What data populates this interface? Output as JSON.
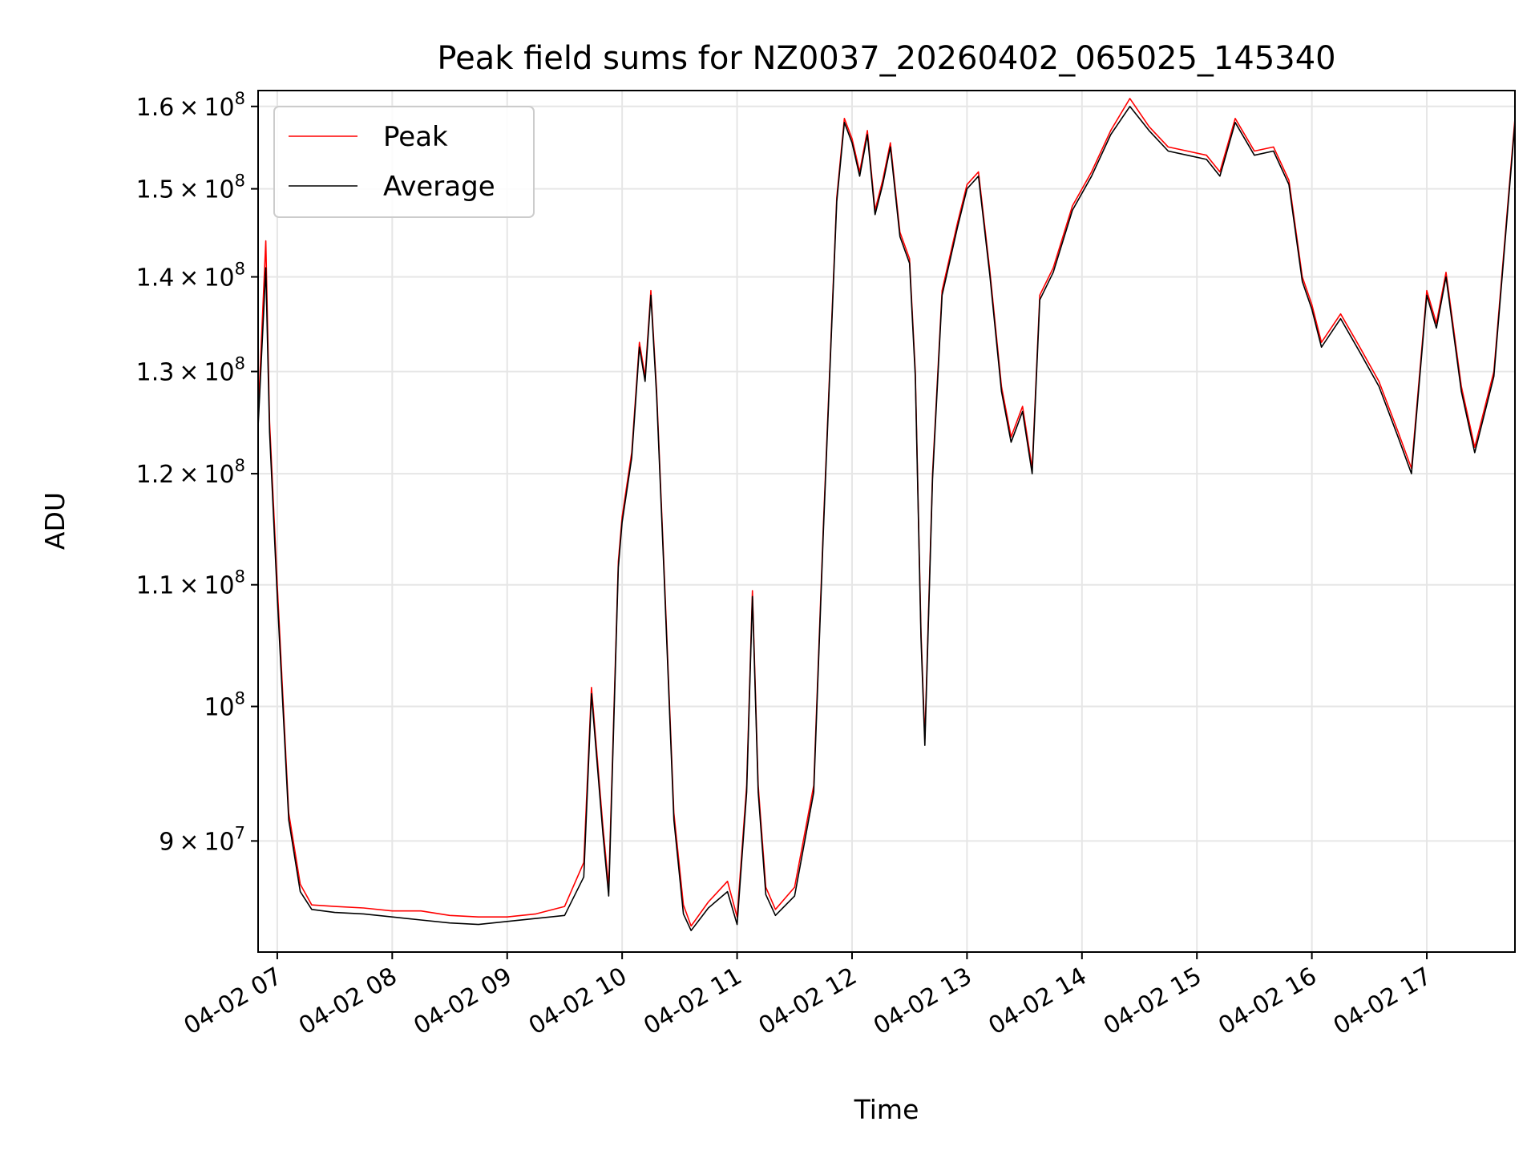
{
  "chart_data": {
    "type": "line",
    "title": "Peak field sums for NZ0037_20260402_065025_145340",
    "xlabel": "Time",
    "ylabel": "ADU",
    "yscale": "log",
    "grid": true,
    "legend_position": "top-left",
    "xlim": [
      "2026-04-02 06:50",
      "2026-04-02 17:46"
    ],
    "ylim": [
      82500000,
      162000000
    ],
    "x_tick_values": [
      "2026-04-02 07:00",
      "2026-04-02 08:00",
      "2026-04-02 09:00",
      "2026-04-02 10:00",
      "2026-04-02 11:00",
      "2026-04-02 12:00",
      "2026-04-02 13:00",
      "2026-04-02 14:00",
      "2026-04-02 15:00",
      "2026-04-02 16:00",
      "2026-04-02 17:00"
    ],
    "x_tick_labels": [
      "04-02 07",
      "04-02 08",
      "04-02 09",
      "04-02 10",
      "04-02 11",
      "04-02 12",
      "04-02 13",
      "04-02 14",
      "04-02 15",
      "04-02 16",
      "04-02 17"
    ],
    "y_ticks": [
      {
        "value": 90000000,
        "mantissa": "9",
        "exp": "7"
      },
      {
        "value": 100000000,
        "mantissa": "",
        "exp": "8"
      },
      {
        "value": 110000000,
        "mantissa": "1.1",
        "exp": "8"
      },
      {
        "value": 120000000,
        "mantissa": "1.2",
        "exp": "8"
      },
      {
        "value": 130000000,
        "mantissa": "1.3",
        "exp": "8"
      },
      {
        "value": 140000000,
        "mantissa": "1.4",
        "exp": "8"
      },
      {
        "value": 150000000,
        "mantissa": "1.5",
        "exp": "8"
      },
      {
        "value": 160000000,
        "mantissa": "1.6",
        "exp": "8"
      }
    ],
    "colors": {
      "Peak": "#ff0000",
      "Average": "#000000",
      "grid": "#e6e6e6"
    },
    "series": [
      {
        "name": "Peak",
        "color": "#ff0000",
        "x": [
          "2026-04-02 06:50",
          "2026-04-02 06:54",
          "2026-04-02 06:56",
          "2026-04-02 07:00",
          "2026-04-02 07:06",
          "2026-04-02 07:12",
          "2026-04-02 07:18",
          "2026-04-02 07:30",
          "2026-04-02 07:45",
          "2026-04-02 08:00",
          "2026-04-02 08:15",
          "2026-04-02 08:30",
          "2026-04-02 08:45",
          "2026-04-02 09:00",
          "2026-04-02 09:15",
          "2026-04-02 09:30",
          "2026-04-02 09:40",
          "2026-04-02 09:44",
          "2026-04-02 09:50",
          "2026-04-02 09:53",
          "2026-04-02 09:58",
          "2026-04-02 10:00",
          "2026-04-02 10:05",
          "2026-04-02 10:09",
          "2026-04-02 10:12",
          "2026-04-02 10:15",
          "2026-04-02 10:18",
          "2026-04-02 10:22",
          "2026-04-02 10:27",
          "2026-04-02 10:32",
          "2026-04-02 10:36",
          "2026-04-02 10:45",
          "2026-04-02 10:55",
          "2026-04-02 11:00",
          "2026-04-02 11:05",
          "2026-04-02 11:08",
          "2026-04-02 11:11",
          "2026-04-02 11:15",
          "2026-04-02 11:20",
          "2026-04-02 11:30",
          "2026-04-02 11:40",
          "2026-04-02 11:45",
          "2026-04-02 11:52",
          "2026-04-02 11:56",
          "2026-04-02 12:00",
          "2026-04-02 12:04",
          "2026-04-02 12:08",
          "2026-04-02 12:12",
          "2026-04-02 12:16",
          "2026-04-02 12:20",
          "2026-04-02 12:25",
          "2026-04-02 12:30",
          "2026-04-02 12:33",
          "2026-04-02 12:36",
          "2026-04-02 12:38",
          "2026-04-02 12:42",
          "2026-04-02 12:47",
          "2026-04-02 12:55",
          "2026-04-02 13:00",
          "2026-04-02 13:06",
          "2026-04-02 13:12",
          "2026-04-02 13:18",
          "2026-04-02 13:23",
          "2026-04-02 13:29",
          "2026-04-02 13:34",
          "2026-04-02 13:38",
          "2026-04-02 13:45",
          "2026-04-02 13:55",
          "2026-04-02 14:05",
          "2026-04-02 14:15",
          "2026-04-02 14:25",
          "2026-04-02 14:35",
          "2026-04-02 14:45",
          "2026-04-02 14:55",
          "2026-04-02 15:05",
          "2026-04-02 15:12",
          "2026-04-02 15:20",
          "2026-04-02 15:30",
          "2026-04-02 15:40",
          "2026-04-02 15:48",
          "2026-04-02 15:55",
          "2026-04-02 16:00",
          "2026-04-02 16:05",
          "2026-04-02 16:15",
          "2026-04-02 16:25",
          "2026-04-02 16:35",
          "2026-04-02 16:45",
          "2026-04-02 16:52",
          "2026-04-02 17:00",
          "2026-04-02 17:05",
          "2026-04-02 17:10",
          "2026-04-02 17:18",
          "2026-04-02 17:25",
          "2026-04-02 17:35",
          "2026-04-02 17:46"
        ],
        "y": [
          125500000,
          144000000,
          125000000,
          110000000,
          92000000,
          87000000,
          85600000,
          85500000,
          85400000,
          85200000,
          85200000,
          84900000,
          84800000,
          84800000,
          85000000,
          85500000,
          88500000,
          101500000,
          91000000,
          86800000,
          112000000,
          116000000,
          122000000,
          133000000,
          129500000,
          138500000,
          128000000,
          111000000,
          92000000,
          85600000,
          84200000,
          85800000,
          87200000,
          84800000,
          94000000,
          109500000,
          94000000,
          86800000,
          85300000,
          86800000,
          94000000,
          115000000,
          149000000,
          158500000,
          156000000,
          152000000,
          157000000,
          147500000,
          151000000,
          155500000,
          145000000,
          142000000,
          130000000,
          106000000,
          97500000,
          120000000,
          138500000,
          146000000,
          150500000,
          152000000,
          140500000,
          128500000,
          123500000,
          126500000,
          120500000,
          138000000,
          141000000,
          148000000,
          152000000,
          157000000,
          161000000,
          157500000,
          155000000,
          154500000,
          154000000,
          152000000,
          158500000,
          154500000,
          155000000,
          151000000,
          140000000,
          137000000,
          133000000,
          136000000,
          132500000,
          129000000,
          124000000,
          120500000,
          138500000,
          135000000,
          140500000,
          128500000,
          122500000,
          130000000,
          158500000
        ]
      },
      {
        "name": "Average",
        "color": "#000000",
        "x": [
          "2026-04-02 06:50",
          "2026-04-02 06:54",
          "2026-04-02 06:56",
          "2026-04-02 07:00",
          "2026-04-02 07:06",
          "2026-04-02 07:12",
          "2026-04-02 07:18",
          "2026-04-02 07:30",
          "2026-04-02 07:45",
          "2026-04-02 08:00",
          "2026-04-02 08:15",
          "2026-04-02 08:30",
          "2026-04-02 08:45",
          "2026-04-02 09:00",
          "2026-04-02 09:15",
          "2026-04-02 09:30",
          "2026-04-02 09:40",
          "2026-04-02 09:44",
          "2026-04-02 09:50",
          "2026-04-02 09:53",
          "2026-04-02 09:58",
          "2026-04-02 10:00",
          "2026-04-02 10:05",
          "2026-04-02 10:09",
          "2026-04-02 10:12",
          "2026-04-02 10:15",
          "2026-04-02 10:18",
          "2026-04-02 10:22",
          "2026-04-02 10:27",
          "2026-04-02 10:32",
          "2026-04-02 10:36",
          "2026-04-02 10:45",
          "2026-04-02 10:55",
          "2026-04-02 11:00",
          "2026-04-02 11:05",
          "2026-04-02 11:08",
          "2026-04-02 11:11",
          "2026-04-02 11:15",
          "2026-04-02 11:20",
          "2026-04-02 11:30",
          "2026-04-02 11:40",
          "2026-04-02 11:45",
          "2026-04-02 11:52",
          "2026-04-02 11:56",
          "2026-04-02 12:00",
          "2026-04-02 12:04",
          "2026-04-02 12:08",
          "2026-04-02 12:12",
          "2026-04-02 12:16",
          "2026-04-02 12:20",
          "2026-04-02 12:25",
          "2026-04-02 12:30",
          "2026-04-02 12:33",
          "2026-04-02 12:36",
          "2026-04-02 12:38",
          "2026-04-02 12:42",
          "2026-04-02 12:47",
          "2026-04-02 12:55",
          "2026-04-02 13:00",
          "2026-04-02 13:06",
          "2026-04-02 13:12",
          "2026-04-02 13:18",
          "2026-04-02 13:23",
          "2026-04-02 13:29",
          "2026-04-02 13:34",
          "2026-04-02 13:38",
          "2026-04-02 13:45",
          "2026-04-02 13:55",
          "2026-04-02 14:05",
          "2026-04-02 14:15",
          "2026-04-02 14:25",
          "2026-04-02 14:35",
          "2026-04-02 14:45",
          "2026-04-02 14:55",
          "2026-04-02 15:05",
          "2026-04-02 15:12",
          "2026-04-02 15:20",
          "2026-04-02 15:30",
          "2026-04-02 15:40",
          "2026-04-02 15:48",
          "2026-04-02 15:55",
          "2026-04-02 16:00",
          "2026-04-02 16:05",
          "2026-04-02 16:15",
          "2026-04-02 16:25",
          "2026-04-02 16:35",
          "2026-04-02 16:45",
          "2026-04-02 16:52",
          "2026-04-02 17:00",
          "2026-04-02 17:05",
          "2026-04-02 17:10",
          "2026-04-02 17:18",
          "2026-04-02 17:25",
          "2026-04-02 17:35",
          "2026-04-02 17:46"
        ],
        "y": [
          124500000,
          141000000,
          124000000,
          109000000,
          91500000,
          86500000,
          85300000,
          85100000,
          85000000,
          84800000,
          84600000,
          84400000,
          84300000,
          84500000,
          84700000,
          84900000,
          87500000,
          101000000,
          90500000,
          86200000,
          111500000,
          115500000,
          121500000,
          132500000,
          129000000,
          138000000,
          127500000,
          110500000,
          91500000,
          85000000,
          83900000,
          85400000,
          86500000,
          84300000,
          93500000,
          109000000,
          93500000,
          86300000,
          84900000,
          86200000,
          93500000,
          114500000,
          148500000,
          158000000,
          155500000,
          151500000,
          156500000,
          147000000,
          150500000,
          155000000,
          144500000,
          141500000,
          129500000,
          105500000,
          97000000,
          119500000,
          138000000,
          145500000,
          150000000,
          151500000,
          140000000,
          128000000,
          123000000,
          126000000,
          120000000,
          137500000,
          140500000,
          147500000,
          151500000,
          156500000,
          160000000,
          157000000,
          154500000,
          154000000,
          153500000,
          151500000,
          158000000,
          154000000,
          154500000,
          150500000,
          139500000,
          136500000,
          132500000,
          135500000,
          132000000,
          128500000,
          123500000,
          120000000,
          138000000,
          134500000,
          140000000,
          128000000,
          122000000,
          129500000,
          158000000
        ]
      }
    ]
  }
}
